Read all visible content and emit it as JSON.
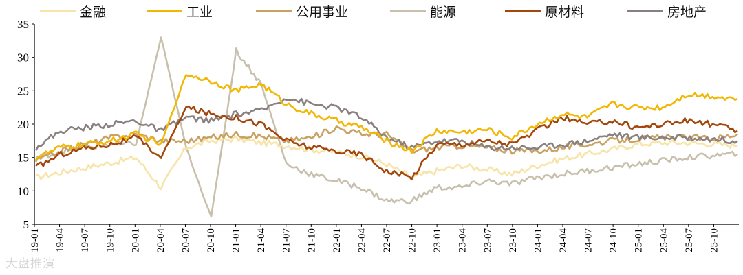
{
  "chart_data": {
    "type": "line",
    "title": "",
    "xlabel": "",
    "ylabel": "",
    "ylim": [
      5,
      35
    ],
    "yticks": [
      5,
      10,
      15,
      20,
      25,
      30,
      35
    ],
    "x_ticks": [
      "19-01",
      "19-04",
      "19-07",
      "19-10",
      "20-01",
      "20-04",
      "20-07",
      "20-10",
      "21-01",
      "21-04",
      "21-07",
      "21-10",
      "22-01",
      "22-04",
      "22-07",
      "22-10",
      "23-01",
      "23-04",
      "23-07",
      "23-10",
      "24-01",
      "24-04",
      "24-07",
      "24-10",
      "25-01",
      "25-04",
      "25-07",
      "25-10"
    ],
    "legend_position": "top",
    "series": [
      {
        "name": "金融",
        "color": "#F7E4A8",
        "values": [
          12.0,
          12.8,
          13.5,
          14.2,
          15.0,
          10.5,
          16.5,
          17.5,
          17.8,
          17.2,
          16.8,
          16.2,
          15.8,
          15.2,
          14.0,
          12.0,
          13.0,
          13.8,
          13.2,
          12.5,
          13.8,
          14.8,
          15.5,
          16.2,
          17.0,
          17.2,
          17.2,
          17.0,
          16.8
        ]
      },
      {
        "name": "工业",
        "color": "#F2B705",
        "values": [
          15.0,
          16.5,
          17.0,
          17.5,
          18.5,
          17.0,
          27.5,
          26.5,
          25.0,
          26.0,
          23.0,
          21.5,
          20.5,
          19.5,
          17.5,
          16.0,
          19.0,
          18.8,
          19.2,
          18.0,
          20.0,
          21.5,
          21.0,
          23.0,
          22.5,
          22.5,
          24.5,
          24.2,
          23.8
        ]
      },
      {
        "name": "公用事业",
        "color": "#C9A262",
        "values": [
          14.5,
          16.0,
          17.0,
          18.0,
          18.5,
          17.5,
          17.5,
          18.0,
          18.5,
          18.2,
          17.5,
          18.0,
          19.5,
          18.5,
          18.5,
          16.0,
          16.5,
          16.8,
          16.5,
          16.0,
          16.0,
          16.5,
          17.0,
          17.5,
          17.8,
          18.0,
          18.0,
          17.8,
          18.5
        ]
      },
      {
        "name": "能源",
        "color": "#C8C0AC",
        "values": [
          15.0,
          15.8,
          16.5,
          17.0,
          17.0,
          33.0,
          16.5,
          6.0,
          31.0,
          26.0,
          14.0,
          12.5,
          11.5,
          10.5,
          8.5,
          8.5,
          10.5,
          10.5,
          11.5,
          11.0,
          12.0,
          12.5,
          13.0,
          13.5,
          14.0,
          14.5,
          15.0,
          15.3,
          15.5
        ]
      },
      {
        "name": "原材料",
        "color": "#A4470C",
        "values": [
          13.5,
          15.5,
          16.5,
          17.0,
          18.0,
          15.0,
          22.5,
          21.5,
          21.0,
          20.0,
          17.5,
          16.5,
          16.0,
          15.5,
          13.0,
          12.0,
          17.0,
          17.0,
          17.5,
          17.0,
          19.0,
          21.0,
          20.0,
          20.5,
          19.5,
          20.0,
          20.5,
          20.0,
          19.0
        ]
      },
      {
        "name": "房地产",
        "color": "#8A8080",
        "values": [
          16.5,
          19.0,
          19.5,
          20.0,
          20.5,
          19.0,
          21.0,
          20.5,
          21.5,
          22.0,
          24.0,
          23.0,
          22.5,
          21.0,
          18.0,
          16.5,
          17.5,
          17.5,
          16.5,
          16.5,
          16.5,
          17.0,
          17.5,
          18.5,
          18.0,
          18.0,
          18.0,
          17.8,
          17.5
        ]
      }
    ]
  },
  "watermark": "大盘推演"
}
